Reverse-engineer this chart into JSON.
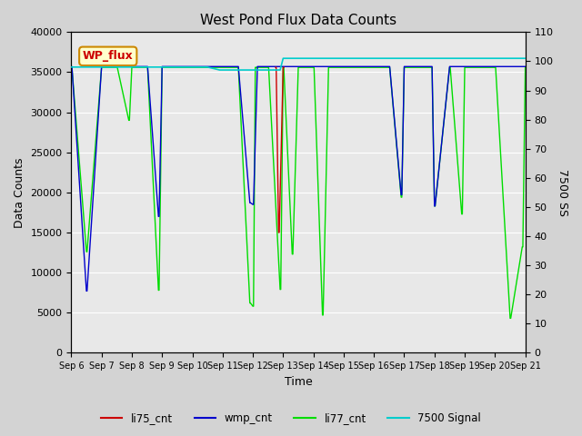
{
  "title": "West Pond Flux Data Counts",
  "xlabel": "Time",
  "ylabel_left": "Data Counts",
  "ylabel_right": "7500 SS",
  "ylim_left": [
    0,
    40000
  ],
  "ylim_right": [
    0,
    110
  ],
  "fig_bg": "#d3d3d3",
  "plot_bg": "#e8e8e8",
  "annot_text": "WP_flux",
  "annot_fc": "#ffffcc",
  "annot_ec": "#cc8800",
  "xtick_labels": [
    "Sep 6",
    "Sep 7",
    "Sep 8",
    "Sep 9",
    "Sep 10",
    "Sep 11",
    "Sep 12",
    "Sep 13",
    "Sep 14",
    "Sep 15",
    "Sep 16",
    "Sep 17",
    "Sep 18",
    "Sep 19",
    "Sep 20",
    "Sep 21"
  ],
  "grid_color": "#ffffff",
  "series": {
    "li77_cnt": {
      "color": "#00dd00",
      "lw": 1.0,
      "x": [
        6.0,
        6.02,
        6.5,
        6.52,
        7.0,
        7.02,
        7.3,
        7.32,
        7.5,
        7.52,
        7.9,
        7.92,
        8.0,
        8.02,
        8.4,
        8.42,
        8.5,
        8.52,
        8.88,
        8.9,
        9.0,
        9.02,
        9.5,
        9.52,
        9.9,
        9.92,
        10.0,
        10.02,
        10.5,
        10.52,
        10.9,
        10.92,
        11.0,
        11.02,
        11.5,
        11.52,
        11.9,
        11.92,
        12.0,
        12.02,
        12.08,
        12.1,
        12.5,
        12.52,
        12.9,
        12.92,
        13.0,
        13.02,
        13.3,
        13.32,
        13.5,
        13.52,
        13.9,
        13.92,
        14.0,
        14.02,
        14.3,
        14.32,
        14.5,
        14.52,
        14.9,
        14.92,
        15.0,
        15.02,
        15.5,
        15.52,
        15.9,
        15.92,
        16.0,
        16.02,
        16.5,
        16.52,
        16.9,
        16.92,
        17.0,
        17.02,
        17.3,
        17.32,
        17.5,
        17.52,
        17.9,
        17.92,
        18.0,
        18.02,
        18.5,
        18.52,
        18.9,
        18.92,
        19.0,
        19.02,
        19.5,
        19.52,
        19.9,
        19.92,
        20.0,
        20.02,
        20.5,
        20.52,
        20.9,
        20.92,
        21.0
      ],
      "y": [
        35600,
        35600,
        12600,
        12600,
        35600,
        35600,
        35600,
        35600,
        35600,
        35600,
        29000,
        29000,
        35600,
        35600,
        35600,
        35600,
        35600,
        35600,
        7800,
        7800,
        35600,
        35600,
        35600,
        35600,
        35600,
        35600,
        35600,
        35600,
        35600,
        35600,
        35600,
        35600,
        35600,
        35600,
        35600,
        35600,
        6200,
        6200,
        5800,
        5800,
        35600,
        35600,
        35600,
        35600,
        7900,
        7900,
        35600,
        35600,
        12300,
        12300,
        35600,
        35600,
        35600,
        35600,
        35600,
        35600,
        4700,
        4700,
        35600,
        35600,
        35600,
        35600,
        35600,
        35600,
        35600,
        35600,
        35600,
        35600,
        35600,
        35600,
        35600,
        35600,
        19400,
        19400,
        35600,
        35600,
        35600,
        35600,
        35600,
        35600,
        35600,
        35600,
        18300,
        18300,
        35600,
        35600,
        17300,
        17300,
        35600,
        35600,
        35600,
        35600,
        35600,
        35600,
        35600,
        35600,
        4300,
        4300,
        13200,
        13200,
        35600
      ]
    },
    "wmp_cnt": {
      "color": "#0000cc",
      "lw": 1.0,
      "x": [
        6.0,
        6.02,
        6.5,
        6.52,
        7.0,
        7.02,
        7.3,
        7.32,
        7.5,
        7.52,
        7.9,
        7.92,
        8.0,
        8.02,
        8.5,
        8.52,
        8.88,
        8.9,
        9.0,
        9.02,
        9.5,
        9.52,
        9.9,
        9.92,
        10.0,
        10.02,
        10.5,
        10.52,
        10.9,
        10.92,
        11.0,
        11.02,
        11.5,
        11.52,
        11.9,
        11.92,
        12.0,
        12.02,
        12.15,
        12.17,
        12.5,
        12.52,
        12.9,
        12.92,
        13.0,
        13.02,
        13.5,
        13.52,
        13.9,
        13.92,
        14.0,
        14.02,
        14.5,
        14.52,
        14.9,
        14.92,
        15.0,
        15.02,
        15.5,
        15.52,
        15.9,
        15.92,
        16.0,
        16.02,
        16.5,
        16.52,
        16.9,
        16.92,
        17.0,
        17.02,
        17.3,
        17.32,
        17.5,
        17.52,
        17.9,
        17.92,
        18.0,
        18.02,
        18.5,
        18.52,
        18.9,
        18.92,
        19.0,
        19.02,
        19.5,
        19.52,
        19.9,
        19.92,
        20.0,
        20.02,
        20.5,
        20.52,
        20.9,
        20.92,
        21.0
      ],
      "y": [
        35700,
        35700,
        7700,
        7700,
        35700,
        35700,
        35700,
        35700,
        35700,
        35700,
        35700,
        35700,
        35700,
        35700,
        35700,
        35700,
        17000,
        17000,
        35700,
        35700,
        35700,
        35700,
        35700,
        35700,
        35700,
        35700,
        35700,
        35700,
        35700,
        35700,
        35700,
        35700,
        35700,
        35700,
        18700,
        18700,
        18500,
        18500,
        35700,
        35700,
        35700,
        35700,
        35700,
        35700,
        35700,
        35700,
        35700,
        35700,
        35700,
        35700,
        35700,
        35700,
        35700,
        35700,
        35700,
        35700,
        35700,
        35700,
        35700,
        35700,
        35700,
        35700,
        35700,
        35700,
        35700,
        35700,
        19700,
        19700,
        35700,
        35700,
        35700,
        35700,
        35700,
        35700,
        35700,
        35700,
        18300,
        18300,
        35700,
        35700,
        35700,
        35700,
        35700,
        35700,
        35700,
        35700,
        35700,
        35700,
        35700,
        35700,
        35700,
        35700,
        35700,
        35700,
        35700
      ]
    },
    "li75_cnt": {
      "color": "#cc0000",
      "lw": 1.0,
      "x": [
        12.75,
        12.77,
        12.85,
        12.87,
        13.0,
        13.02
      ],
      "y": [
        35600,
        35600,
        15000,
        15000,
        35600,
        35600
      ]
    },
    "s7500": {
      "color": "#00cccc",
      "lw": 1.2,
      "x": [
        6.0,
        6.5,
        7.0,
        7.3,
        7.5,
        7.9,
        8.0,
        8.5,
        8.88,
        9.0,
        9.5,
        9.9,
        10.0,
        10.5,
        10.9,
        11.0,
        11.5,
        11.9,
        12.0,
        12.15,
        12.5,
        12.9,
        13.0,
        13.5,
        13.9,
        14.0,
        14.3,
        14.5,
        14.9,
        15.0,
        15.5,
        15.9,
        16.0,
        16.5,
        16.9,
        17.0,
        17.3,
        17.5,
        17.9,
        18.0,
        18.5,
        18.9,
        19.0,
        19.5,
        19.9,
        20.0,
        20.5,
        20.9,
        21.0
      ],
      "y": [
        98,
        98,
        98,
        98,
        98,
        98,
        98,
        98,
        98,
        98,
        98,
        98,
        98,
        98,
        97,
        97,
        97,
        97,
        97,
        97,
        97,
        97,
        101,
        101,
        101,
        101,
        101,
        101,
        101,
        101,
        101,
        101,
        101,
        101,
        101,
        101,
        101,
        101,
        101,
        101,
        101,
        101,
        101,
        101,
        101,
        101,
        101,
        101,
        101
      ]
    }
  },
  "legend": [
    {
      "label": "li75_cnt",
      "color": "#cc0000"
    },
    {
      "label": "wmp_cnt",
      "color": "#0000cc"
    },
    {
      "label": "li77_cnt",
      "color": "#00dd00"
    },
    {
      "label": "7500 Signal",
      "color": "#00cccc"
    }
  ]
}
